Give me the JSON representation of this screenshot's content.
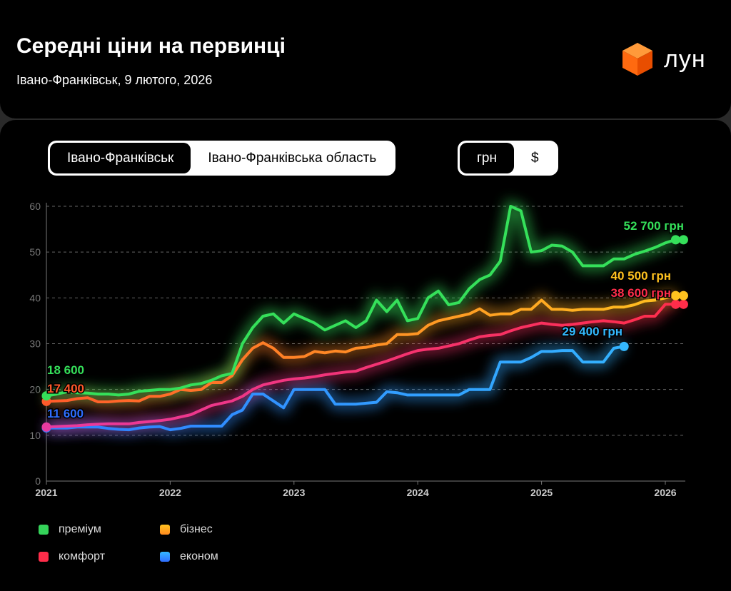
{
  "header": {
    "title": "Середні ціни на первинці",
    "subtitle": "Івано-Франківськ, 9 лютого, 2026",
    "logo_text": "лун",
    "logo_icon": "orange-cube-icon"
  },
  "region_tabs": [
    {
      "label": "Івано-Франківськ",
      "selected": true
    },
    {
      "label": "Івано-Франківська область",
      "selected": false
    }
  ],
  "currency_tabs": [
    {
      "label": "грн",
      "selected": true
    },
    {
      "label": "$",
      "selected": false
    }
  ],
  "chart_data": {
    "type": "line",
    "ylim": [
      0,
      60
    ],
    "yticks": [
      "0",
      "10",
      "20",
      "30",
      "40",
      "50",
      "60"
    ],
    "xticks": [
      "2021",
      "2022",
      "2023",
      "2024",
      "2025",
      "2026"
    ],
    "x_start": "2021-01",
    "x_step": "month",
    "grid": true,
    "legend_placement": "bottom-left",
    "series": [
      {
        "name": "преміум",
        "color": "#35e05a",
        "start_label": "18 600",
        "end_label": "52 700 грн",
        "values": [
          18.6,
          19,
          19.5,
          19.3,
          19.2,
          19,
          19,
          18.8,
          19,
          19.6,
          19.8,
          20,
          20,
          20.3,
          21,
          21.3,
          22,
          23,
          23.5,
          30,
          33.5,
          36,
          36.5,
          34.5,
          36.5,
          35.5,
          34.5,
          33,
          34,
          35,
          33.5,
          35,
          39.5,
          37,
          39.5,
          35,
          35.5,
          40,
          41.5,
          38.5,
          39,
          42,
          44,
          45,
          48,
          60,
          59,
          50,
          50.3,
          51.5,
          51.3,
          50,
          47,
          47,
          47,
          48.5,
          48.5,
          49.5,
          50.2,
          51,
          52,
          52.7
        ]
      },
      {
        "name": "бізнес",
        "color": "#ffc21f",
        "start_color": "#ff5a2a",
        "start_label": "17 400",
        "end_label": "40 500 грн",
        "values": [
          17.4,
          17.5,
          17.6,
          18,
          18.2,
          17.3,
          17.3,
          17.5,
          17.6,
          17.5,
          18.5,
          18.5,
          19,
          20,
          19.8,
          20,
          21.5,
          21.5,
          23,
          26.5,
          29,
          30.2,
          29,
          27,
          27,
          27.2,
          28.3,
          28,
          28.4,
          28.2,
          29,
          29.2,
          29.7,
          30,
          32,
          32,
          32.2,
          34,
          35,
          35.5,
          36,
          36.5,
          37.6,
          36.2,
          36.5,
          36.5,
          37.5,
          37.5,
          39.5,
          37.5,
          37.5,
          37.3,
          37.5,
          37.5,
          37.5,
          38,
          38,
          38.5,
          39.3,
          39.5,
          40,
          40.5
        ]
      },
      {
        "name": "комфорт",
        "color": "#ff2d4a",
        "start_color": "#e83aa0",
        "end_label": "38 600 грн",
        "values": [
          11.8,
          11.9,
          12,
          12.1,
          12.3,
          12.4,
          12.5,
          12.5,
          12.5,
          12.8,
          13,
          13.2,
          13.5,
          14,
          14.5,
          15.5,
          16.5,
          17,
          17.5,
          18.5,
          20,
          21,
          21.5,
          22,
          22.3,
          22.5,
          22.8,
          23.2,
          23.5,
          23.8,
          24,
          24.8,
          25.5,
          26.2,
          27,
          27.8,
          28.5,
          28.8,
          29,
          29.5,
          30,
          30.8,
          31.5,
          31.8,
          32,
          32.8,
          33.5,
          34,
          34.5,
          34.2,
          34,
          34.2,
          34.5,
          34.8,
          35,
          34.8,
          34.5,
          35.2,
          36,
          36,
          38.6,
          38.6
        ]
      },
      {
        "name": "економ",
        "color": "#2f7dff",
        "end_color": "#34b8ff",
        "start_label": "11 600",
        "end_label": "29 400 грн",
        "values": [
          11.6,
          11.6,
          11.6,
          11.8,
          11.8,
          11.8,
          11.5,
          11.3,
          11.2,
          11.6,
          11.8,
          11.9,
          11.2,
          11.5,
          12,
          12,
          12,
          12,
          14.5,
          15.5,
          19,
          19,
          17.5,
          16,
          20,
          20,
          20,
          20,
          16.8,
          16.8,
          16.8,
          17,
          17.2,
          19.5,
          19.3,
          18.8,
          18.8,
          18.8,
          18.8,
          18.8,
          18.8,
          20,
          20,
          20,
          26,
          26,
          26,
          27,
          28.3,
          28.3,
          28.5,
          28.5,
          26,
          26,
          26,
          29,
          29.4
        ]
      }
    ]
  }
}
